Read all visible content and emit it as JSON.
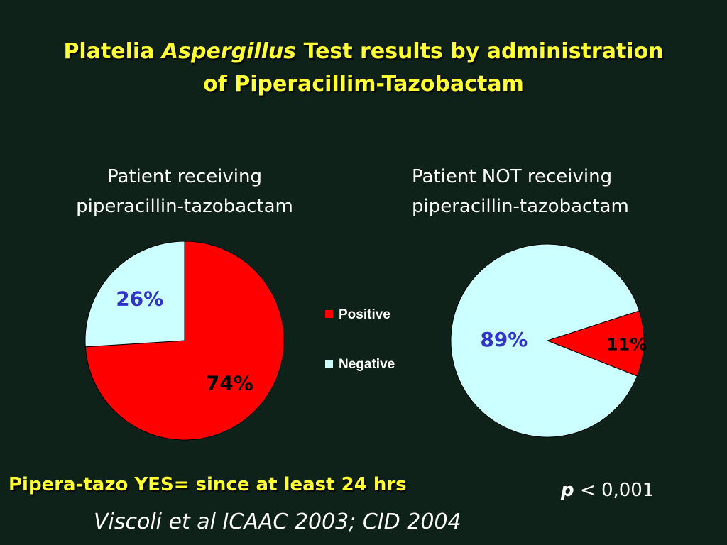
{
  "title": {
    "part1": "Platelia ",
    "part2_italic": "Aspergillus",
    "part3": " Test results by administration",
    "line2": "of Piperacillim-Tazobactam"
  },
  "chart_data": [
    {
      "type": "pie",
      "title": "Patient receiving piperacillin-tazobactam",
      "title_line1": "Patient receiving",
      "title_line2": "piperacillin-tazobactam",
      "slices": [
        {
          "name": "Positive",
          "value": 74,
          "label": "74%",
          "color": "#ff0000",
          "label_color": "#000000"
        },
        {
          "name": "Negative",
          "value": 26,
          "label": "26%",
          "color": "#ccffff",
          "label_color": "#3333cc"
        }
      ]
    },
    {
      "type": "pie",
      "title": "Patient NOT receiving piperacillin-tazobactam",
      "title_line1": "Patient NOT receiving",
      "title_line2": "piperacillin-tazobactam",
      "slices": [
        {
          "name": "Positive",
          "value": 11,
          "label": "11%",
          "color": "#ff0000",
          "label_color": "#000000"
        },
        {
          "name": "Negative",
          "value": 89,
          "label": "89%",
          "color": "#ccffff",
          "label_color": "#3333cc"
        }
      ]
    }
  ],
  "legend": [
    {
      "name": "Positive",
      "color": "#ff0000"
    },
    {
      "name": "Negative",
      "color": "#ccffff"
    }
  ],
  "note": "Pipera-tazo YES= since at least 24 hrs",
  "pvalue": {
    "symbol": "p",
    "text": " < 0,001"
  },
  "citation": "Viscoli et al ICAAC 2003; CID 2004",
  "colors": {
    "background": "#0f2219",
    "title": "#ffff33"
  }
}
